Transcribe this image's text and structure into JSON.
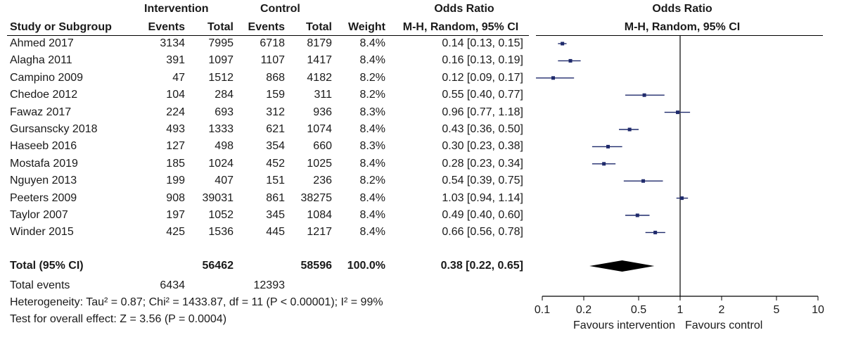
{
  "header": {
    "group1_title": "Intervention",
    "group2_title": "Control",
    "or_title": "Odds Ratio",
    "col_study": "Study or Subgroup",
    "col_events": "Events",
    "col_total": "Total",
    "col_weight": "Weight",
    "col_method": "M-H, Random, 95% CI",
    "plot_title": "Odds Ratio",
    "plot_method": "M-H, Random, 95% CI"
  },
  "studies": [
    {
      "name": "Ahmed 2017",
      "e1": "3134",
      "t1": "7995",
      "e2": "6718",
      "t2": "8179",
      "weight": "8.4%",
      "ci_text": "0.14 [0.13, 0.15]"
    },
    {
      "name": "Alagha 2011",
      "e1": "391",
      "t1": "1097",
      "e2": "1107",
      "t2": "1417",
      "weight": "8.4%",
      "ci_text": "0.16 [0.13, 0.19]"
    },
    {
      "name": "Campino 2009",
      "e1": "47",
      "t1": "1512",
      "e2": "868",
      "t2": "4182",
      "weight": "8.2%",
      "ci_text": "0.12 [0.09, 0.17]"
    },
    {
      "name": "Chedoe 2012",
      "e1": "104",
      "t1": "284",
      "e2": "159",
      "t2": "311",
      "weight": "8.2%",
      "ci_text": "0.55 [0.40, 0.77]"
    },
    {
      "name": "Fawaz 2017",
      "e1": "224",
      "t1": "693",
      "e2": "312",
      "t2": "936",
      "weight": "8.3%",
      "ci_text": "0.96 [0.77, 1.18]"
    },
    {
      "name": "Gursanscky 2018",
      "e1": "493",
      "t1": "1333",
      "e2": "621",
      "t2": "1074",
      "weight": "8.4%",
      "ci_text": "0.43 [0.36, 0.50]"
    },
    {
      "name": "Haseeb 2016",
      "e1": "127",
      "t1": "498",
      "e2": "354",
      "t2": "660",
      "weight": "8.3%",
      "ci_text": "0.30 [0.23, 0.38]"
    },
    {
      "name": "Mostafa 2019",
      "e1": "185",
      "t1": "1024",
      "e2": "452",
      "t2": "1025",
      "weight": "8.4%",
      "ci_text": "0.28 [0.23, 0.34]"
    },
    {
      "name": "Nguyen 2013",
      "e1": "199",
      "t1": "407",
      "e2": "151",
      "t2": "236",
      "weight": "8.2%",
      "ci_text": "0.54 [0.39, 0.75]"
    },
    {
      "name": "Peeters 2009",
      "e1": "908",
      "t1": "39031",
      "e2": "861",
      "t2": "38275",
      "weight": "8.4%",
      "ci_text": "1.03 [0.94, 1.14]"
    },
    {
      "name": "Taylor 2007",
      "e1": "197",
      "t1": "1052",
      "e2": "345",
      "t2": "1084",
      "weight": "8.4%",
      "ci_text": "0.49 [0.40, 0.60]"
    },
    {
      "name": "Winder 2015",
      "e1": "425",
      "t1": "1536",
      "e2": "445",
      "t2": "1217",
      "weight": "8.4%",
      "ci_text": "0.66 [0.56, 0.78]"
    }
  ],
  "total": {
    "label": "Total (95% CI)",
    "t1": "56462",
    "t2": "58596",
    "weight": "100.0%",
    "ci_text": "0.38 [0.22, 0.65]"
  },
  "events": {
    "label": "Total events",
    "e1": "6434",
    "e2": "12393"
  },
  "heterogeneity": "Heterogeneity: Tau² = 0.87; Chi² = 1433.87, df = 11 (P < 0.00001); I² = 99%",
  "overall_effect": "Test for overall effect: Z = 3.56 (P = 0.0004)",
  "axis": {
    "left_label": "Favours intervention",
    "right_label": "Favours control"
  },
  "colors": {
    "marker": "#1f2a6b",
    "line": "#000000",
    "diamond": "#000000"
  },
  "chart_data": {
    "type": "forest",
    "scale": "log",
    "xlim": [
      0.1,
      10
    ],
    "ticks": [
      0.1,
      0.2,
      0.5,
      1,
      2,
      5,
      10
    ],
    "tick_labels": [
      "0.1",
      "0.2",
      "0.5",
      "1",
      "2",
      "5",
      "10"
    ],
    "null_value": 1,
    "points": [
      {
        "or": 0.14,
        "lo": 0.13,
        "hi": 0.15
      },
      {
        "or": 0.16,
        "lo": 0.13,
        "hi": 0.19
      },
      {
        "or": 0.12,
        "lo": 0.09,
        "hi": 0.17
      },
      {
        "or": 0.55,
        "lo": 0.4,
        "hi": 0.77
      },
      {
        "or": 0.96,
        "lo": 0.77,
        "hi": 1.18
      },
      {
        "or": 0.43,
        "lo": 0.36,
        "hi": 0.5
      },
      {
        "or": 0.3,
        "lo": 0.23,
        "hi": 0.38
      },
      {
        "or": 0.28,
        "lo": 0.23,
        "hi": 0.34
      },
      {
        "or": 0.54,
        "lo": 0.39,
        "hi": 0.75
      },
      {
        "or": 1.03,
        "lo": 0.94,
        "hi": 1.14
      },
      {
        "or": 0.49,
        "lo": 0.4,
        "hi": 0.6
      },
      {
        "or": 0.66,
        "lo": 0.56,
        "hi": 0.78
      }
    ],
    "pooled": {
      "or": 0.38,
      "lo": 0.22,
      "hi": 0.65
    }
  }
}
